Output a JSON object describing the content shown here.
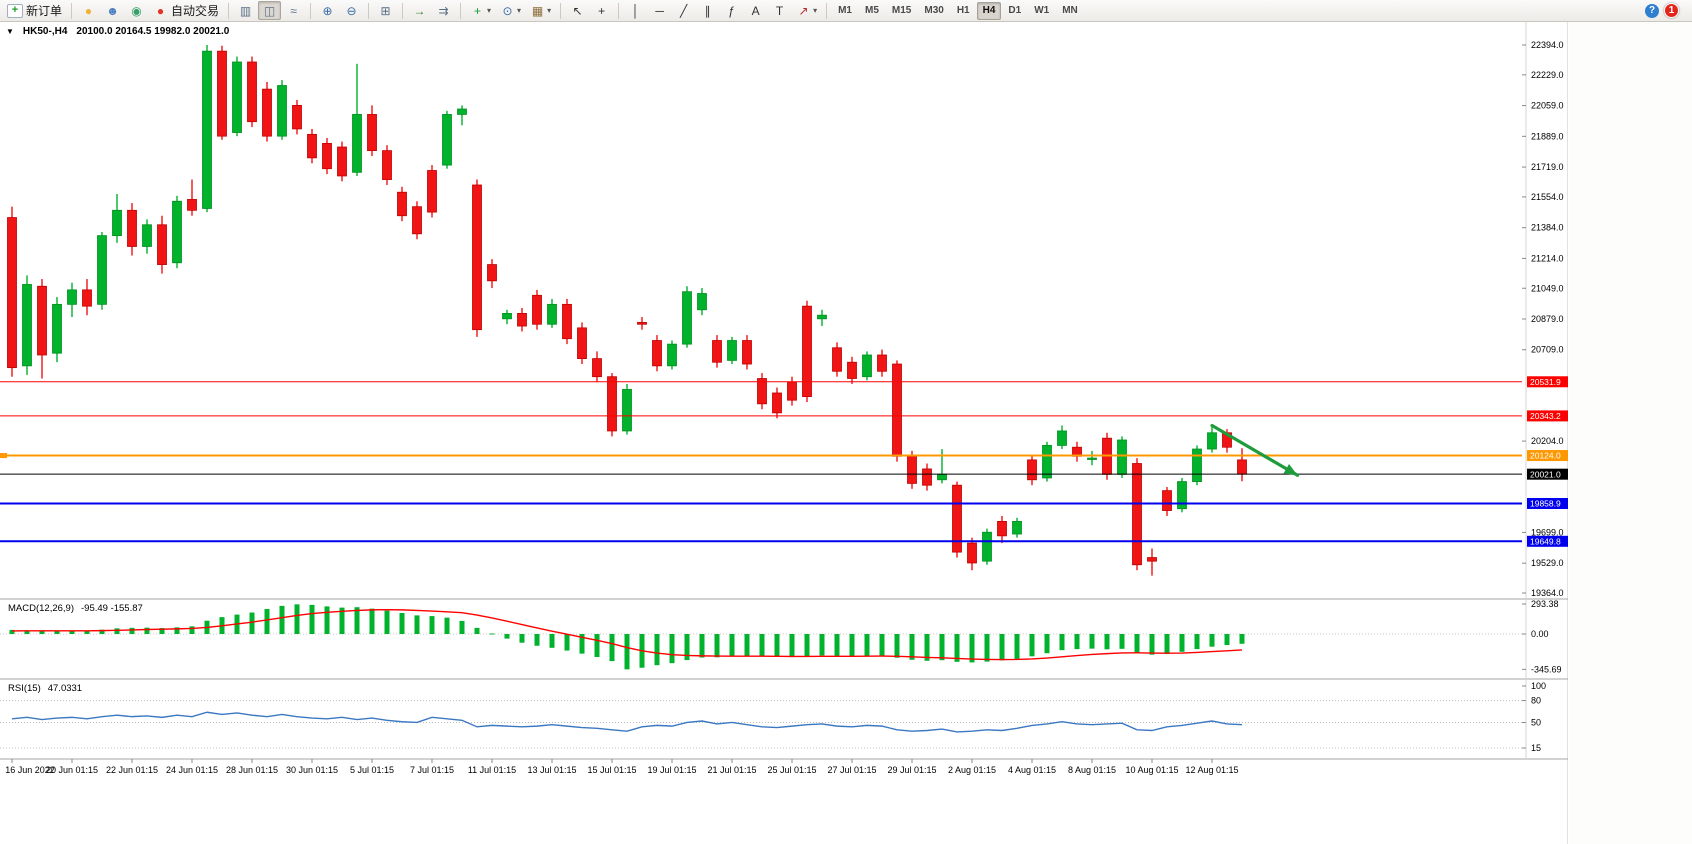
{
  "toolbar": {
    "help_glyph": "?",
    "notification_count": "1",
    "groups": [
      {
        "items": [
          {
            "name": "new-order-button",
            "icon": "order-ticket-icon",
            "glyph": "+",
            "color": "#17a02a",
            "box": true,
            "label": "新订单"
          }
        ]
      },
      {
        "items": [
          {
            "name": "mql5-button",
            "icon": "mql5-icon",
            "glyph": "●",
            "color": "#f0b43a"
          },
          {
            "name": "profile-button",
            "icon": "profile-icon",
            "glyph": "☻",
            "color": "#4a7fc0"
          },
          {
            "name": "community-button",
            "icon": "globe-icon",
            "glyph": "◉",
            "color": "#35a06a"
          },
          {
            "name": "auto-trading-button",
            "icon": "autotrade-status-icon",
            "glyph": "●",
            "color": "#e33322",
            "label": "自动交易"
          }
        ]
      },
      {
        "items": [
          {
            "name": "bar-chart-button",
            "icon": "bar-chart-icon",
            "glyph": "▥",
            "color": "#5a6f85"
          },
          {
            "name": "candlestick-chart-button",
            "icon": "candlestick-icon",
            "glyph": "◫",
            "color": "#5a6f85",
            "active": true
          },
          {
            "name": "line-chart-button",
            "icon": "line-chart-icon",
            "glyph": "≈",
            "color": "#5a6f85"
          }
        ]
      },
      {
        "items": [
          {
            "name": "zoom-in-button",
            "icon": "zoom-in-icon",
            "glyph": "⊕",
            "color": "#3a6ea5"
          },
          {
            "name": "zoom-out-button",
            "icon": "zoom-out-icon",
            "glyph": "⊖",
            "color": "#3a6ea5"
          }
        ]
      },
      {
        "items": [
          {
            "name": "tile-windows-button",
            "icon": "tile-windows-icon",
            "glyph": "⊞",
            "color": "#5a6f85"
          }
        ]
      },
      {
        "items": [
          {
            "name": "auto-scroll-button",
            "icon": "auto-scroll-icon",
            "glyph": "→",
            "color": "#2e7d32"
          },
          {
            "name": "chart-shift-button",
            "icon": "chart-shift-icon",
            "glyph": "⇉",
            "color": "#5a6f85"
          }
        ]
      },
      {
        "items": [
          {
            "name": "indicators-button",
            "icon": "indicators-plus-icon",
            "glyph": "+",
            "color": "#17a02a",
            "caret": true
          },
          {
            "name": "periods-button",
            "icon": "clock-icon",
            "glyph": "⊙",
            "color": "#3a6ea5",
            "caret": true
          },
          {
            "name": "templates-button",
            "icon": "template-icon",
            "glyph": "▦",
            "color": "#8a6d3b",
            "caret": true
          }
        ]
      },
      {
        "items": [
          {
            "name": "cursor-button",
            "icon": "cursor-arrow-icon",
            "glyph": "↖",
            "color": "#333333"
          },
          {
            "name": "crosshair-button",
            "icon": "crosshair-icon",
            "glyph": "+",
            "color": "#333333"
          }
        ]
      },
      {
        "items": [
          {
            "name": "vertical-line-button",
            "icon": "vertical-line-icon",
            "glyph": "│",
            "color": "#333333"
          },
          {
            "name": "horizontal-line-button",
            "icon": "horizontal-line-icon",
            "glyph": "─",
            "color": "#333333"
          },
          {
            "name": "trendline-button",
            "icon": "trendline-icon",
            "glyph": "╱",
            "color": "#333333"
          },
          {
            "name": "channel-button",
            "icon": "channel-icon",
            "glyph": "∥",
            "color": "#333333"
          },
          {
            "name": "fibonacci-button",
            "icon": "fibonacci-icon",
            "glyph": "ƒ",
            "color": "#333333"
          },
          {
            "name": "text-button",
            "icon": "text-icon",
            "glyph": "A",
            "color": "#333333"
          },
          {
            "name": "label-button",
            "icon": "text-label-icon",
            "glyph": "T",
            "color": "#333333"
          },
          {
            "name": "shapes-button",
            "icon": "arrow-shapes-icon",
            "glyph": "↗",
            "color": "#b03030",
            "caret": true
          }
        ]
      }
    ],
    "timeframes": [
      {
        "label": "M1"
      },
      {
        "label": "M5"
      },
      {
        "label": "M15"
      },
      {
        "label": "M30"
      },
      {
        "label": "H1"
      },
      {
        "label": "H4",
        "active": true
      },
      {
        "label": "D1"
      },
      {
        "label": "W1"
      },
      {
        "label": "MN"
      }
    ]
  },
  "chart": {
    "one_click_glyph": "▼"
  },
  "chart_data": [
    {
      "type": "candlestick",
      "symbol": "HK50-,H4",
      "ohlc_text": "20100.0 20164.5 19982.0 20021.0",
      "ylim": [
        19364.0,
        22394.0
      ],
      "grid": false,
      "colors": {
        "up": "#00b22c",
        "up_stroke": "#008f1f",
        "down": "#f01414",
        "down_stroke": "#c00000"
      },
      "y_ticks": [
        22394.0,
        22229.0,
        22059.0,
        21889.0,
        21719.0,
        21554.0,
        21384.0,
        21214.0,
        21049.0,
        20879.0,
        20709.0,
        20204.0,
        19699.0,
        19529.0,
        19364.0
      ],
      "x_labels": [
        "16 Jun 2022",
        "20 Jun 01:15",
        "22 Jun 01:15",
        "24 Jun 01:15",
        "28 Jun 01:15",
        "30 Jun 01:15",
        "5 Jul 01:15",
        "7 Jul 01:15",
        "11 Jul 01:15",
        "13 Jul 01:15",
        "15 Jul 01:15",
        "19 Jul 01:15",
        "21 Jul 01:15",
        "25 Jul 01:15",
        "27 Jul 01:15",
        "29 Jul 01:15",
        "2 Aug 01:15",
        "4 Aug 01:15",
        "8 Aug 01:15",
        "10 Aug 01:15",
        "12 Aug 01:15"
      ],
      "x_label_step": 4,
      "levels": [
        {
          "value": 20531.9,
          "color": "#ff0000",
          "line_width": 1
        },
        {
          "value": 20343.2,
          "color": "#ff0000",
          "line_width": 1
        },
        {
          "value": 20124.0,
          "color": "#ff9800",
          "line_width": 2,
          "left_marker": true
        },
        {
          "value": 20021.0,
          "color": "#000000",
          "line_width": 1
        },
        {
          "value": 19858.9,
          "color": "#0000ee",
          "line_width": 2
        },
        {
          "value": 19649.8,
          "color": "#0000ee",
          "line_width": 2
        }
      ],
      "arrow_annotation": {
        "from": {
          "index": 80,
          "price": 20290
        },
        "to": {
          "index": 85.7,
          "price": 20015
        },
        "color": "#1e9c3c"
      },
      "candles": [
        [
          21440,
          21500,
          20560,
          20610
        ],
        [
          20620,
          21120,
          20570,
          21070
        ],
        [
          21060,
          21100,
          20550,
          20680
        ],
        [
          20690,
          21000,
          20640,
          20960
        ],
        [
          20960,
          21080,
          20890,
          21040
        ],
        [
          21040,
          21100,
          20900,
          20950
        ],
        [
          20960,
          21360,
          20930,
          21340
        ],
        [
          21340,
          21570,
          21300,
          21480
        ],
        [
          21480,
          21520,
          21230,
          21280
        ],
        [
          21280,
          21430,
          21240,
          21400
        ],
        [
          21400,
          21450,
          21130,
          21180
        ],
        [
          21190,
          21560,
          21160,
          21530
        ],
        [
          21540,
          21650,
          21450,
          21480
        ],
        [
          21490,
          22394,
          21470,
          22360
        ],
        [
          22360,
          22390,
          21870,
          21890
        ],
        [
          21910,
          22330,
          21890,
          22300
        ],
        [
          22300,
          22330,
          21940,
          21970
        ],
        [
          22150,
          22190,
          21860,
          21890
        ],
        [
          21890,
          22200,
          21870,
          22170
        ],
        [
          22060,
          22090,
          21900,
          21930
        ],
        [
          21900,
          21930,
          21740,
          21770
        ],
        [
          21850,
          21880,
          21680,
          21710
        ],
        [
          21830,
          21860,
          21640,
          21670
        ],
        [
          21690,
          22290,
          21670,
          22010
        ],
        [
          22010,
          22060,
          21780,
          21810
        ],
        [
          21810,
          21840,
          21620,
          21650
        ],
        [
          21580,
          21610,
          21420,
          21450
        ],
        [
          21500,
          21530,
          21320,
          21350
        ],
        [
          21700,
          21730,
          21440,
          21470
        ],
        [
          21730,
          22030,
          21710,
          22010
        ],
        [
          22010,
          22060,
          21950,
          22040
        ],
        [
          21620,
          21650,
          20780,
          20820
        ],
        [
          21180,
          21210,
          21050,
          21090
        ],
        [
          20880,
          20930,
          20850,
          20910
        ],
        [
          20910,
          20940,
          20810,
          20840
        ],
        [
          21010,
          21040,
          20820,
          20850
        ],
        [
          20850,
          20990,
          20830,
          20960
        ],
        [
          20960,
          20990,
          20740,
          20770
        ],
        [
          20830,
          20860,
          20630,
          20660
        ],
        [
          20660,
          20700,
          20530,
          20560
        ],
        [
          20560,
          20580,
          20230,
          20260
        ],
        [
          20260,
          20520,
          20240,
          20490
        ],
        [
          20860,
          20890,
          20820,
          20850
        ],
        [
          20760,
          20790,
          20590,
          20620
        ],
        [
          20620,
          20760,
          20600,
          20740
        ],
        [
          20740,
          21060,
          20720,
          21030
        ],
        [
          20930,
          21050,
          20900,
          21020
        ],
        [
          20760,
          20790,
          20610,
          20640
        ],
        [
          20650,
          20780,
          20630,
          20760
        ],
        [
          20760,
          20790,
          20600,
          20630
        ],
        [
          20550,
          20580,
          20380,
          20410
        ],
        [
          20470,
          20500,
          20330,
          20360
        ],
        [
          20530,
          20560,
          20400,
          20430
        ],
        [
          20950,
          20980,
          20420,
          20450
        ],
        [
          20880,
          20930,
          20840,
          20900
        ],
        [
          20720,
          20750,
          20560,
          20590
        ],
        [
          20640,
          20670,
          20520,
          20550
        ],
        [
          20560,
          20700,
          20540,
          20680
        ],
        [
          20680,
          20710,
          20560,
          20590
        ],
        [
          20630,
          20650,
          20090,
          20120
        ],
        [
          20120,
          20150,
          19940,
          19970
        ],
        [
          20050,
          20080,
          19930,
          19960
        ],
        [
          19990,
          20160,
          19970,
          20020
        ],
        [
          19960,
          19980,
          19560,
          19590
        ],
        [
          19640,
          19670,
          19490,
          19530
        ],
        [
          19540,
          19720,
          19520,
          19700
        ],
        [
          19760,
          19790,
          19640,
          19680
        ],
        [
          19690,
          19780,
          19670,
          19760
        ],
        [
          20100,
          20130,
          19960,
          19990
        ],
        [
          20000,
          20200,
          19980,
          20180
        ],
        [
          20180,
          20290,
          20160,
          20260
        ],
        [
          20170,
          20200,
          20090,
          20120
        ],
        [
          20110,
          20150,
          20070,
          20110
        ],
        [
          20220,
          20250,
          19990,
          20020
        ],
        [
          20020,
          20230,
          20000,
          20210
        ],
        [
          20080,
          20110,
          19490,
          19520
        ],
        [
          19560,
          19610,
          19460,
          19540
        ],
        [
          19930,
          19950,
          19790,
          19820
        ],
        [
          19830,
          20000,
          19810,
          19980
        ],
        [
          19980,
          20180,
          19960,
          20160
        ],
        [
          20160,
          20290,
          20140,
          20250
        ],
        [
          20250,
          20270,
          20140,
          20170
        ],
        [
          20100,
          20164.5,
          19982,
          20021
        ]
      ]
    },
    {
      "type": "bar",
      "label": "MACD(12,26,9)",
      "values_text": "-95.49 -155.87",
      "y_ticks": [
        293.38,
        0.0,
        -345.69
      ],
      "colors": {
        "histogram": "#00b22c",
        "signal": "#ff0000"
      },
      "histogram": [
        40,
        35,
        30,
        28,
        30,
        32,
        42,
        55,
        60,
        62,
        58,
        65,
        75,
        130,
        165,
        190,
        210,
        245,
        275,
        290,
        285,
        270,
        258,
        262,
        248,
        228,
        205,
        182,
        175,
        160,
        128,
        60,
        5,
        -45,
        -85,
        -115,
        -135,
        -162,
        -192,
        -225,
        -265,
        -345.69,
        -330,
        -305,
        -285,
        -255,
        -230,
        -228,
        -220,
        -215,
        -212,
        -220,
        -226,
        -222,
        -210,
        -214,
        -220,
        -216,
        -210,
        -232,
        -252,
        -262,
        -256,
        -272,
        -278,
        -270,
        -258,
        -244,
        -218,
        -188,
        -158,
        -148,
        -143,
        -150,
        -145,
        -182,
        -202,
        -196,
        -174,
        -148,
        -124,
        -108,
        -95.49
      ],
      "signal": [
        30,
        31,
        31,
        31,
        31,
        31,
        33,
        36,
        40,
        44,
        47,
        50,
        54,
        64,
        80,
        98,
        116,
        137,
        160,
        182,
        200,
        212,
        222,
        230,
        236,
        238,
        236,
        230,
        224,
        217,
        208,
        185,
        157,
        125,
        92,
        59,
        28,
        -2,
        -32,
        -62,
        -94,
        -133,
        -164,
        -186,
        -202,
        -210,
        -214,
        -216,
        -217,
        -217,
        -217,
        -218,
        -219,
        -219,
        -218,
        -218,
        -218,
        -217,
        -216,
        -218,
        -223,
        -229,
        -233,
        -239,
        -245,
        -249,
        -250,
        -249,
        -244,
        -235,
        -223,
        -211,
        -200,
        -192,
        -185,
        -184,
        -186,
        -188,
        -186,
        -180,
        -172,
        -164,
        -155.87
      ]
    },
    {
      "type": "line",
      "label": "RSI(15)",
      "values_text": "47.0331",
      "y_ticks": [
        100,
        80,
        50,
        15
      ],
      "levels": [
        80,
        50,
        15
      ],
      "color": "#3b78c2",
      "values": [
        55,
        57,
        54,
        56,
        57,
        55,
        58,
        60,
        58,
        59,
        57,
        60,
        58,
        64,
        61,
        63,
        60,
        58,
        61,
        58,
        56,
        55,
        57,
        54,
        56,
        53,
        51,
        50,
        57,
        55,
        53,
        44,
        46,
        45,
        44,
        45,
        47,
        45,
        43,
        42,
        40,
        38,
        44,
        46,
        45,
        50,
        52,
        48,
        50,
        47,
        44,
        43,
        45,
        47,
        48,
        45,
        44,
        46,
        45,
        40,
        38,
        39,
        41,
        37,
        38,
        40,
        39,
        42,
        46,
        48,
        51,
        48,
        47,
        48,
        49,
        40,
        39,
        44,
        46,
        49,
        52,
        48,
        47.03
      ]
    }
  ]
}
